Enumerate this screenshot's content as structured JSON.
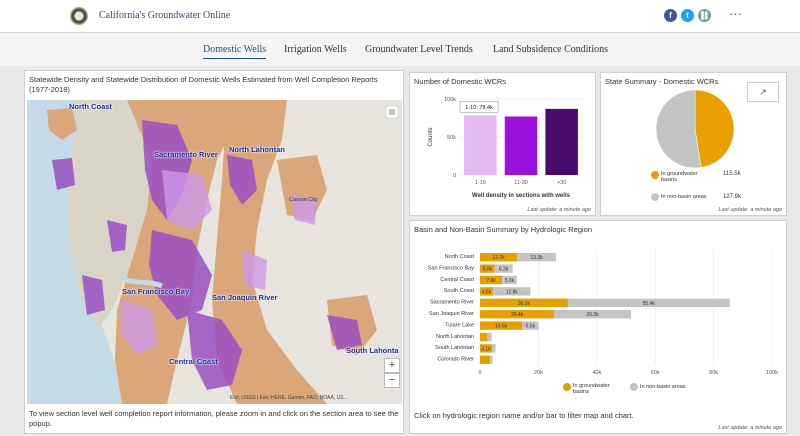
{
  "header": {
    "title": "California's Groundwater Online",
    "more": "···",
    "brand_color": "#2a4d7a"
  },
  "social": [
    {
      "icon": "facebook-icon",
      "glyph": "f",
      "color": "#3b5998"
    },
    {
      "icon": "twitter-icon",
      "glyph": "t",
      "color": "#1da1f2"
    },
    {
      "icon": "link-icon",
      "glyph": "⛓",
      "color": "#7a9aa8"
    }
  ],
  "tabs": [
    {
      "label": "Domestic Wells",
      "active": true
    },
    {
      "label": "Irrigation Wells",
      "active": false
    },
    {
      "label": "Groundwater Level Trends",
      "active": false
    },
    {
      "label": "Land Subsidence Conditions",
      "active": false
    }
  ],
  "map": {
    "title": "Statewide Density and Statewide Distribution of Domestic Wells Estimated from Well Completion Reports (1977-2018)",
    "labels": [
      "North Coast",
      "Sacramento River",
      "North Lahontan",
      "San Francisco Bay",
      "San Joaquin River",
      "Central Coast",
      "South Lahonta"
    ],
    "place": "Carson City",
    "attribution": "Esri, USGS | Esri, HERE, Garmin, FAO, NOAA, US...",
    "zoom_in": "+",
    "zoom_out": "−",
    "footer": "To view section level well completion report information, please zoom in and click on the section area to see the popup."
  },
  "wcr_chart": {
    "title": "Number of Domestic WCRs",
    "updated": "Last update: a minute ago",
    "chart_data": {
      "type": "bar",
      "categories": [
        "1-10",
        "11-30",
        ">30"
      ],
      "values": [
        78400,
        77000,
        87000
      ],
      "colors": [
        "#e4b8f2",
        "#9c10dc",
        "#4a0a6e"
      ],
      "xlabel": "Well density in sections with wells",
      "ylabel": "Counts",
      "yticks": [
        "0",
        "50k",
        "100k"
      ],
      "ylim": [
        0,
        100000
      ],
      "tooltip": "1-10: 78.4k"
    }
  },
  "summary": {
    "title": "State Summary - Domestic WCRs",
    "updated": "Last update: a minute ago",
    "chart_data": {
      "type": "pie",
      "slices": [
        {
          "name": "In groundwater basins",
          "value": 115500,
          "label": "115.5k",
          "color": "#e8a000"
        },
        {
          "name": "In non-basin areas",
          "value": 127900,
          "label": "127.9k",
          "color": "#c4c4c4"
        }
      ]
    }
  },
  "basin": {
    "title": "Basin and Non-Basin Summary by Hydrologic Region",
    "updated": "Last update: a minute ago",
    "footer": "Click on hydrologic region name and/or bar to filter map and chart.",
    "chart_data": {
      "type": "bar",
      "orientation": "horizontal",
      "stacked": true,
      "categories": [
        "North Coast",
        "San Francisco Bay",
        "Central Coast",
        "South Coast",
        "Sacramento River",
        "San Joaquin River",
        "Tulare Lake",
        "North Lahontan",
        "South Lahontan",
        "Colorado River"
      ],
      "series": [
        {
          "name": "In groundwater basins",
          "color": "#e8a000",
          "values": [
            12700,
            5000,
            7600,
            4500,
            30100,
            25400,
            14500,
            2500,
            4100,
            3500
          ],
          "labels": [
            "12.7k",
            "5.0k",
            "7.6k",
            "4.5k",
            "30.1k",
            "25.4k",
            "14.5k",
            "",
            "4.1k",
            ""
          ]
        },
        {
          "name": "In non-basin areas",
          "color": "#c4c4c4",
          "values": [
            13300,
            6200,
            5000,
            12800,
            55400,
            26300,
            5500,
            1500,
            1200,
            800
          ],
          "labels": [
            "13.3k",
            "6.2k",
            "5.0k",
            "12.8k",
            "55.4k",
            "26.3k",
            "5.5k",
            "",
            "",
            ""
          ]
        }
      ],
      "xticks": [
        "0",
        "20k",
        "40k",
        "60k",
        "80k",
        "100k"
      ],
      "xlim": [
        0,
        100000
      ]
    }
  }
}
